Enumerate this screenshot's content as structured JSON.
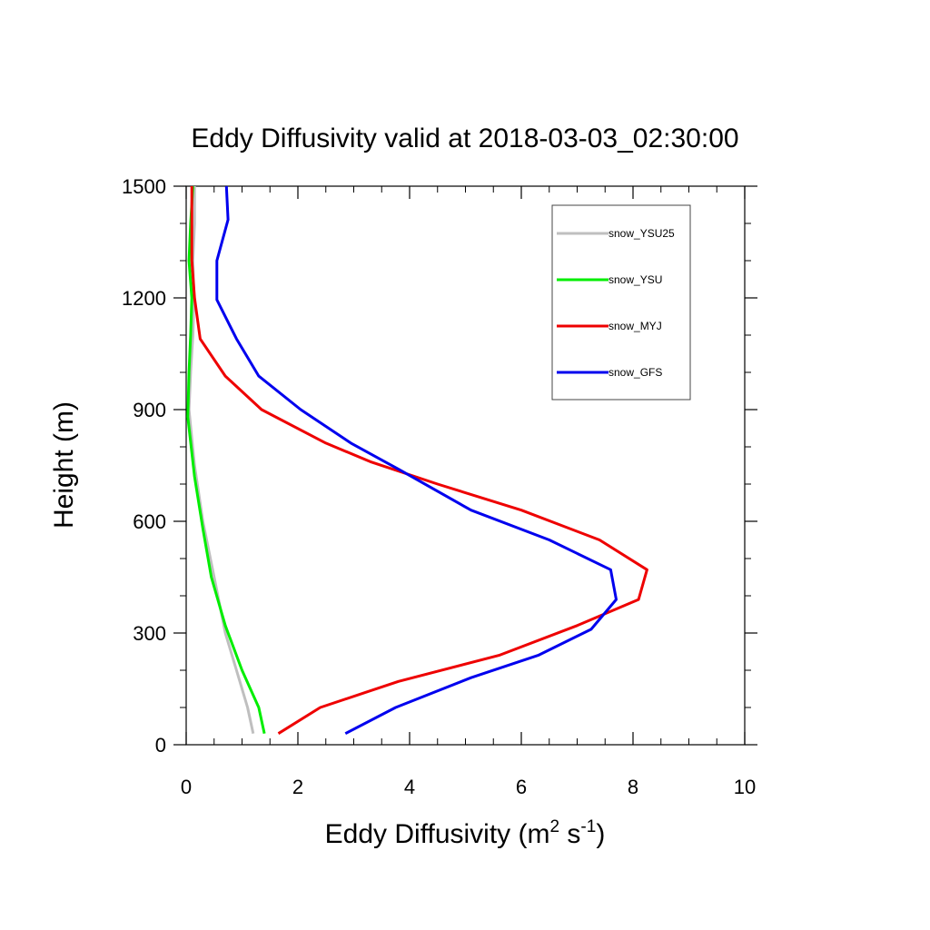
{
  "chart_data": {
    "type": "line",
    "title": "Eddy Diffusivity valid at 2018-03-03_02:30:00",
    "xlabel": {
      "base": "Eddy Diffusivity (m",
      "sup1": "2",
      "mid": " s",
      "sup2": "-1",
      "end": ")"
    },
    "ylabel": "Height (m)",
    "xlim": [
      0,
      10
    ],
    "ylim": [
      0,
      1500
    ],
    "xticks": [
      "0",
      "2",
      "4",
      "6",
      "8",
      "10"
    ],
    "yticks": [
      "0",
      "300",
      "600",
      "900",
      "1200",
      "1500"
    ],
    "legend_position": "top-right",
    "series": [
      {
        "name": "snow_YSU25",
        "color": "#bfbfbf",
        "points": [
          [
            1.2,
            30
          ],
          [
            1.1,
            100
          ],
          [
            0.9,
            200
          ],
          [
            0.7,
            300
          ],
          [
            0.5,
            450
          ],
          [
            0.3,
            600
          ],
          [
            0.15,
            750
          ],
          [
            0.05,
            900
          ],
          [
            0.08,
            1000
          ],
          [
            0.12,
            1100
          ],
          [
            0.14,
            1200
          ],
          [
            0.12,
            1300
          ],
          [
            0.15,
            1400
          ],
          [
            0.15,
            1500
          ]
        ]
      },
      {
        "name": "snow_YSU",
        "color": "#00ee00",
        "points": [
          [
            1.4,
            30
          ],
          [
            1.3,
            100
          ],
          [
            1.0,
            200
          ],
          [
            0.7,
            320
          ],
          [
            0.45,
            450
          ],
          [
            0.3,
            580
          ],
          [
            0.15,
            720
          ],
          [
            0.03,
            880
          ],
          [
            0.05,
            1000
          ],
          [
            0.08,
            1100
          ],
          [
            0.1,
            1200
          ],
          [
            0.05,
            1300
          ],
          [
            0.08,
            1400
          ],
          [
            0.12,
            1500
          ]
        ]
      },
      {
        "name": "snow_MYJ",
        "color": "#ee0000",
        "points": [
          [
            1.65,
            30
          ],
          [
            2.4,
            100
          ],
          [
            3.8,
            170
          ],
          [
            5.6,
            240
          ],
          [
            7.0,
            320
          ],
          [
            8.1,
            390
          ],
          [
            8.25,
            470
          ],
          [
            7.4,
            550
          ],
          [
            6.0,
            630
          ],
          [
            4.5,
            700
          ],
          [
            3.3,
            760
          ],
          [
            2.5,
            810
          ],
          [
            1.35,
            900
          ],
          [
            0.7,
            990
          ],
          [
            0.25,
            1090
          ],
          [
            0.15,
            1200
          ],
          [
            0.1,
            1300
          ],
          [
            0.1,
            1400
          ],
          [
            0.1,
            1500
          ]
        ]
      },
      {
        "name": "snow_GFS",
        "color": "#0000ee",
        "points": [
          [
            2.85,
            30
          ],
          [
            3.75,
            100
          ],
          [
            5.1,
            180
          ],
          [
            6.3,
            240
          ],
          [
            7.25,
            310
          ],
          [
            7.7,
            390
          ],
          [
            7.6,
            470
          ],
          [
            6.5,
            550
          ],
          [
            5.1,
            630
          ],
          [
            3.8,
            740
          ],
          [
            2.95,
            810
          ],
          [
            2.05,
            900
          ],
          [
            1.3,
            990
          ],
          [
            0.9,
            1090
          ],
          [
            0.55,
            1195
          ],
          [
            0.55,
            1300
          ],
          [
            0.75,
            1410
          ],
          [
            0.72,
            1500
          ]
        ]
      }
    ]
  }
}
